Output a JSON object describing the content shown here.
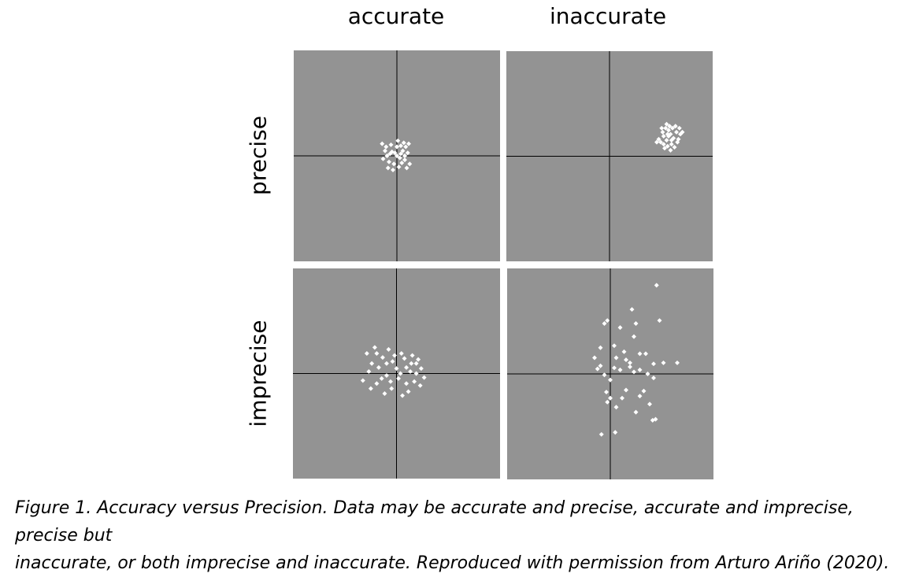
{
  "columns": [
    "accurate",
    "inaccurate"
  ],
  "rows": [
    "precise",
    "imprecise"
  ],
  "caption_line1": "Figure 1. Accuracy versus Precision. Data may be accurate and precise, accurate and imprecise, precise but",
  "caption_line2": "inaccurate, or both imprecise and inaccurate. Reproduced with permission from Arturo Ariño (2020).",
  "colors": {
    "panel": "#939393",
    "point": "#ffffff",
    "axis": "#000000"
  },
  "chart_data": [
    {
      "type": "scatter",
      "title": "",
      "column": "accurate",
      "row": "precise",
      "xlim": [
        -1,
        1
      ],
      "ylim": [
        -1,
        1
      ],
      "points": [
        [
          -0.05,
          0.04
        ],
        [
          -0.1,
          0.0
        ],
        [
          0.03,
          -0.02
        ],
        [
          0.06,
          0.05
        ],
        [
          -0.08,
          -0.06
        ],
        [
          0.0,
          0.09
        ],
        [
          0.08,
          -0.04
        ],
        [
          -0.03,
          -0.08
        ],
        [
          0.11,
          0.03
        ],
        [
          -0.12,
          0.05
        ],
        [
          0.04,
          0.1
        ],
        [
          -0.06,
          0.11
        ],
        [
          0.09,
          0.09
        ],
        [
          -0.14,
          -0.03
        ],
        [
          0.02,
          -0.11
        ],
        [
          -0.09,
          -0.12
        ],
        [
          0.13,
          -0.08
        ],
        [
          0.0,
          0.0
        ],
        [
          -0.02,
          0.03
        ],
        [
          0.05,
          -0.07
        ],
        [
          -0.11,
          0.09
        ],
        [
          0.07,
          0.13
        ],
        [
          -0.04,
          -0.14
        ],
        [
          0.1,
          -0.12
        ],
        [
          0.12,
          0.12
        ],
        [
          -0.15,
          0.12
        ],
        [
          0.01,
          0.15
        ],
        [
          -0.07,
          0.02
        ],
        [
          0.04,
          0.02
        ],
        [
          0.08,
          0.0
        ]
      ]
    },
    {
      "type": "scatter",
      "title": "",
      "column": "inaccurate",
      "row": "precise",
      "xlim": [
        -1,
        1
      ],
      "ylim": [
        -1,
        1
      ],
      "points": [
        [
          0.6,
          0.2
        ],
        [
          0.62,
          0.22
        ],
        [
          0.58,
          0.16
        ],
        [
          0.65,
          0.18
        ],
        [
          0.55,
          0.2
        ],
        [
          0.6,
          0.26
        ],
        [
          0.68,
          0.24
        ],
        [
          0.52,
          0.14
        ],
        [
          0.63,
          0.12
        ],
        [
          0.57,
          0.28
        ],
        [
          0.7,
          0.17
        ],
        [
          0.5,
          0.17
        ],
        [
          0.61,
          0.3
        ],
        [
          0.66,
          0.09
        ],
        [
          0.54,
          0.24
        ],
        [
          0.72,
          0.22
        ],
        [
          0.59,
          0.1
        ],
        [
          0.64,
          0.28
        ],
        [
          0.48,
          0.14
        ],
        [
          0.56,
          0.08
        ],
        [
          0.69,
          0.14
        ],
        [
          0.62,
          0.06
        ],
        [
          0.53,
          0.28
        ],
        [
          0.74,
          0.24
        ],
        [
          0.67,
          0.3
        ],
        [
          0.59,
          0.22
        ],
        [
          0.63,
          0.16
        ],
        [
          0.55,
          0.12
        ],
        [
          0.71,
          0.28
        ],
        [
          0.58,
          0.32
        ]
      ]
    },
    {
      "type": "scatter",
      "title": "",
      "column": "accurate",
      "row": "imprecise",
      "xlim": [
        -1,
        1
      ],
      "ylim": [
        -1,
        1
      ],
      "points": [
        [
          -0.2,
          0.2
        ],
        [
          -0.1,
          0.1
        ],
        [
          0.0,
          0.05
        ],
        [
          0.15,
          0.1
        ],
        [
          0.2,
          0.0
        ],
        [
          0.1,
          -0.1
        ],
        [
          -0.05,
          -0.15
        ],
        [
          -0.15,
          -0.05
        ],
        [
          -0.25,
          0.1
        ],
        [
          0.05,
          0.2
        ],
        [
          -0.3,
          0.2
        ],
        [
          0.25,
          0.05
        ],
        [
          0.18,
          -0.08
        ],
        [
          -0.12,
          -0.2
        ],
        [
          0.08,
          0.15
        ],
        [
          -0.2,
          -0.1
        ],
        [
          0.22,
          0.14
        ],
        [
          -0.08,
          0.24
        ],
        [
          0.12,
          -0.18
        ],
        [
          -0.28,
          0.02
        ],
        [
          0.02,
          -0.05
        ],
        [
          -0.18,
          0.06
        ],
        [
          0.16,
          0.18
        ],
        [
          -0.04,
          0.12
        ],
        [
          0.28,
          -0.04
        ],
        [
          -0.26,
          -0.15
        ],
        [
          0.06,
          -0.22
        ],
        [
          -0.1,
          -0.02
        ],
        [
          0.2,
          0.1
        ],
        [
          -0.22,
          0.26
        ],
        [
          0.04,
          0.0
        ],
        [
          -0.14,
          0.16
        ],
        [
          0.1,
          0.06
        ],
        [
          -0.06,
          -0.08
        ],
        [
          -0.34,
          -0.07
        ],
        [
          0.24,
          -0.12
        ],
        [
          0.14,
          0.02
        ],
        [
          -0.02,
          0.18
        ]
      ]
    },
    {
      "type": "scatter",
      "title": "",
      "column": "inaccurate",
      "row": "imprecise",
      "xlim": [
        -1,
        1
      ],
      "ylim": [
        -1,
        1
      ],
      "points": [
        [
          0.47,
          0.88
        ],
        [
          0.22,
          0.64
        ],
        [
          0.5,
          0.53
        ],
        [
          -0.06,
          0.5
        ],
        [
          0.26,
          0.5
        ],
        [
          0.1,
          0.46
        ],
        [
          -0.03,
          0.53
        ],
        [
          0.24,
          0.37
        ],
        [
          -0.1,
          0.26
        ],
        [
          -0.16,
          0.16
        ],
        [
          0.04,
          0.28
        ],
        [
          0.14,
          0.22
        ],
        [
          0.3,
          0.2
        ],
        [
          0.44,
          0.1
        ],
        [
          0.06,
          0.16
        ],
        [
          0.16,
          0.14
        ],
        [
          0.2,
          0.11
        ],
        [
          0.36,
          0.2
        ],
        [
          -0.1,
          0.08
        ],
        [
          0.04,
          0.06
        ],
        [
          0.1,
          0.04
        ],
        [
          0.24,
          0.02
        ],
        [
          0.3,
          0.04
        ],
        [
          0.38,
          0.0
        ],
        [
          -0.06,
          -0.01
        ],
        [
          0.0,
          -0.06
        ],
        [
          0.44,
          -0.04
        ],
        [
          0.68,
          0.11
        ],
        [
          0.54,
          0.11
        ],
        [
          -0.04,
          -0.18
        ],
        [
          0.16,
          -0.16
        ],
        [
          0.34,
          -0.17
        ],
        [
          0.3,
          -0.22
        ],
        [
          0.12,
          -0.24
        ],
        [
          -0.03,
          -0.28
        ],
        [
          0.0,
          -0.24
        ],
        [
          0.4,
          -0.3
        ],
        [
          0.06,
          -0.33
        ],
        [
          0.26,
          -0.38
        ],
        [
          0.43,
          -0.46
        ],
        [
          0.46,
          -0.45
        ],
        [
          -0.09,
          -0.6
        ],
        [
          0.05,
          -0.58
        ],
        [
          -0.13,
          0.05
        ],
        [
          0.2,
          0.07
        ]
      ]
    }
  ]
}
